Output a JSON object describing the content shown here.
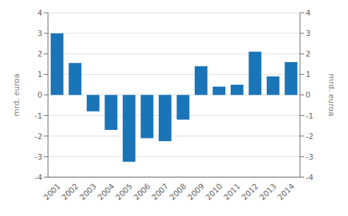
{
  "chart_data": {
    "type": "bar",
    "categories": [
      "2001",
      "2002",
      "2003",
      "2004",
      "2005",
      "2006",
      "2007",
      "2008",
      "2009",
      "2010",
      "2011",
      "2012",
      "2013",
      "2014"
    ],
    "values": [
      3.0,
      1.55,
      -0.8,
      -1.7,
      -3.25,
      -2.1,
      -2.25,
      -1.2,
      1.4,
      0.4,
      0.5,
      2.1,
      0.9,
      1.6
    ],
    "color": "#1a75b8",
    "ylabel": "mrd. euroa",
    "y2label": "mrd. euroa",
    "ylim": [
      -4,
      4
    ],
    "yticks": [
      -4,
      -3,
      -2,
      -1,
      0,
      1,
      2,
      3,
      4
    ],
    "y2lim": [
      -4,
      4
    ],
    "y2ticks": [
      -4,
      -3,
      -2,
      -1,
      0,
      1,
      2,
      3,
      4
    ],
    "grid": true
  }
}
